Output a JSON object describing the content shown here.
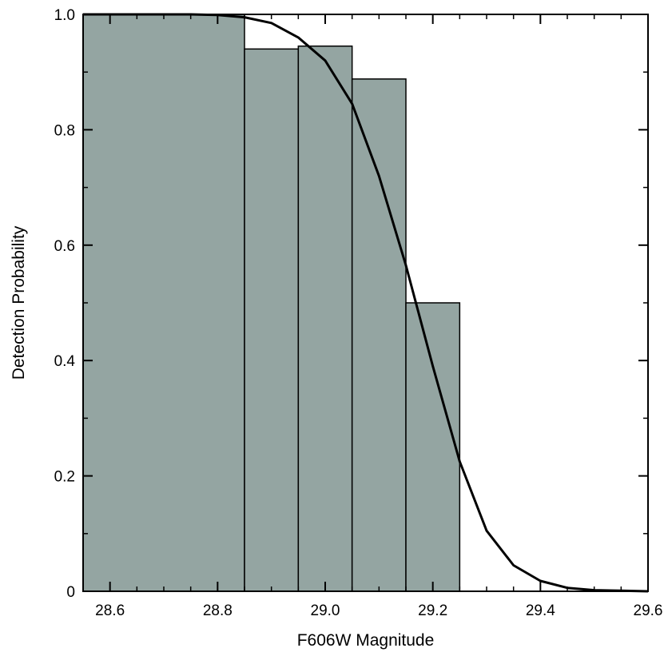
{
  "chart_data": {
    "type": "bar",
    "xlabel": "F606W Magnitude",
    "ylabel": "Detection Probability",
    "xlim": [
      28.55,
      29.6
    ],
    "ylim": [
      0,
      1.0
    ],
    "x_ticks": [
      "28.6",
      "28.8",
      "29.0",
      "29.2",
      "29.4",
      "29.6"
    ],
    "y_ticks": [
      "0",
      "0.2",
      "0.4",
      "0.6",
      "0.8",
      "1.0"
    ],
    "grid": false,
    "histogram": {
      "fill_color": "#94a5a2",
      "bins": [
        {
          "x0": 28.55,
          "x1": 28.85,
          "value": 1.0
        },
        {
          "x0": 28.85,
          "x1": 28.95,
          "value": 0.94
        },
        {
          "x0": 28.95,
          "x1": 29.05,
          "value": 0.945
        },
        {
          "x0": 29.05,
          "x1": 29.15,
          "value": 0.888
        },
        {
          "x0": 29.15,
          "x1": 29.25,
          "value": 0.5
        },
        {
          "x0": 29.25,
          "x1": 29.6,
          "value": 0.0
        }
      ]
    },
    "series": [
      {
        "type": "line",
        "color": "#000000",
        "x": [
          28.55,
          28.65,
          28.75,
          28.8,
          28.85,
          28.9,
          28.95,
          29.0,
          29.05,
          29.1,
          29.15,
          29.2,
          29.25,
          29.3,
          29.35,
          29.4,
          29.45,
          29.5,
          29.55,
          29.6
        ],
        "y": [
          1.0,
          1.0,
          1.0,
          0.999,
          0.995,
          0.985,
          0.96,
          0.92,
          0.845,
          0.72,
          0.565,
          0.39,
          0.225,
          0.105,
          0.045,
          0.018,
          0.006,
          0.002,
          0.001,
          0.0
        ]
      }
    ]
  }
}
